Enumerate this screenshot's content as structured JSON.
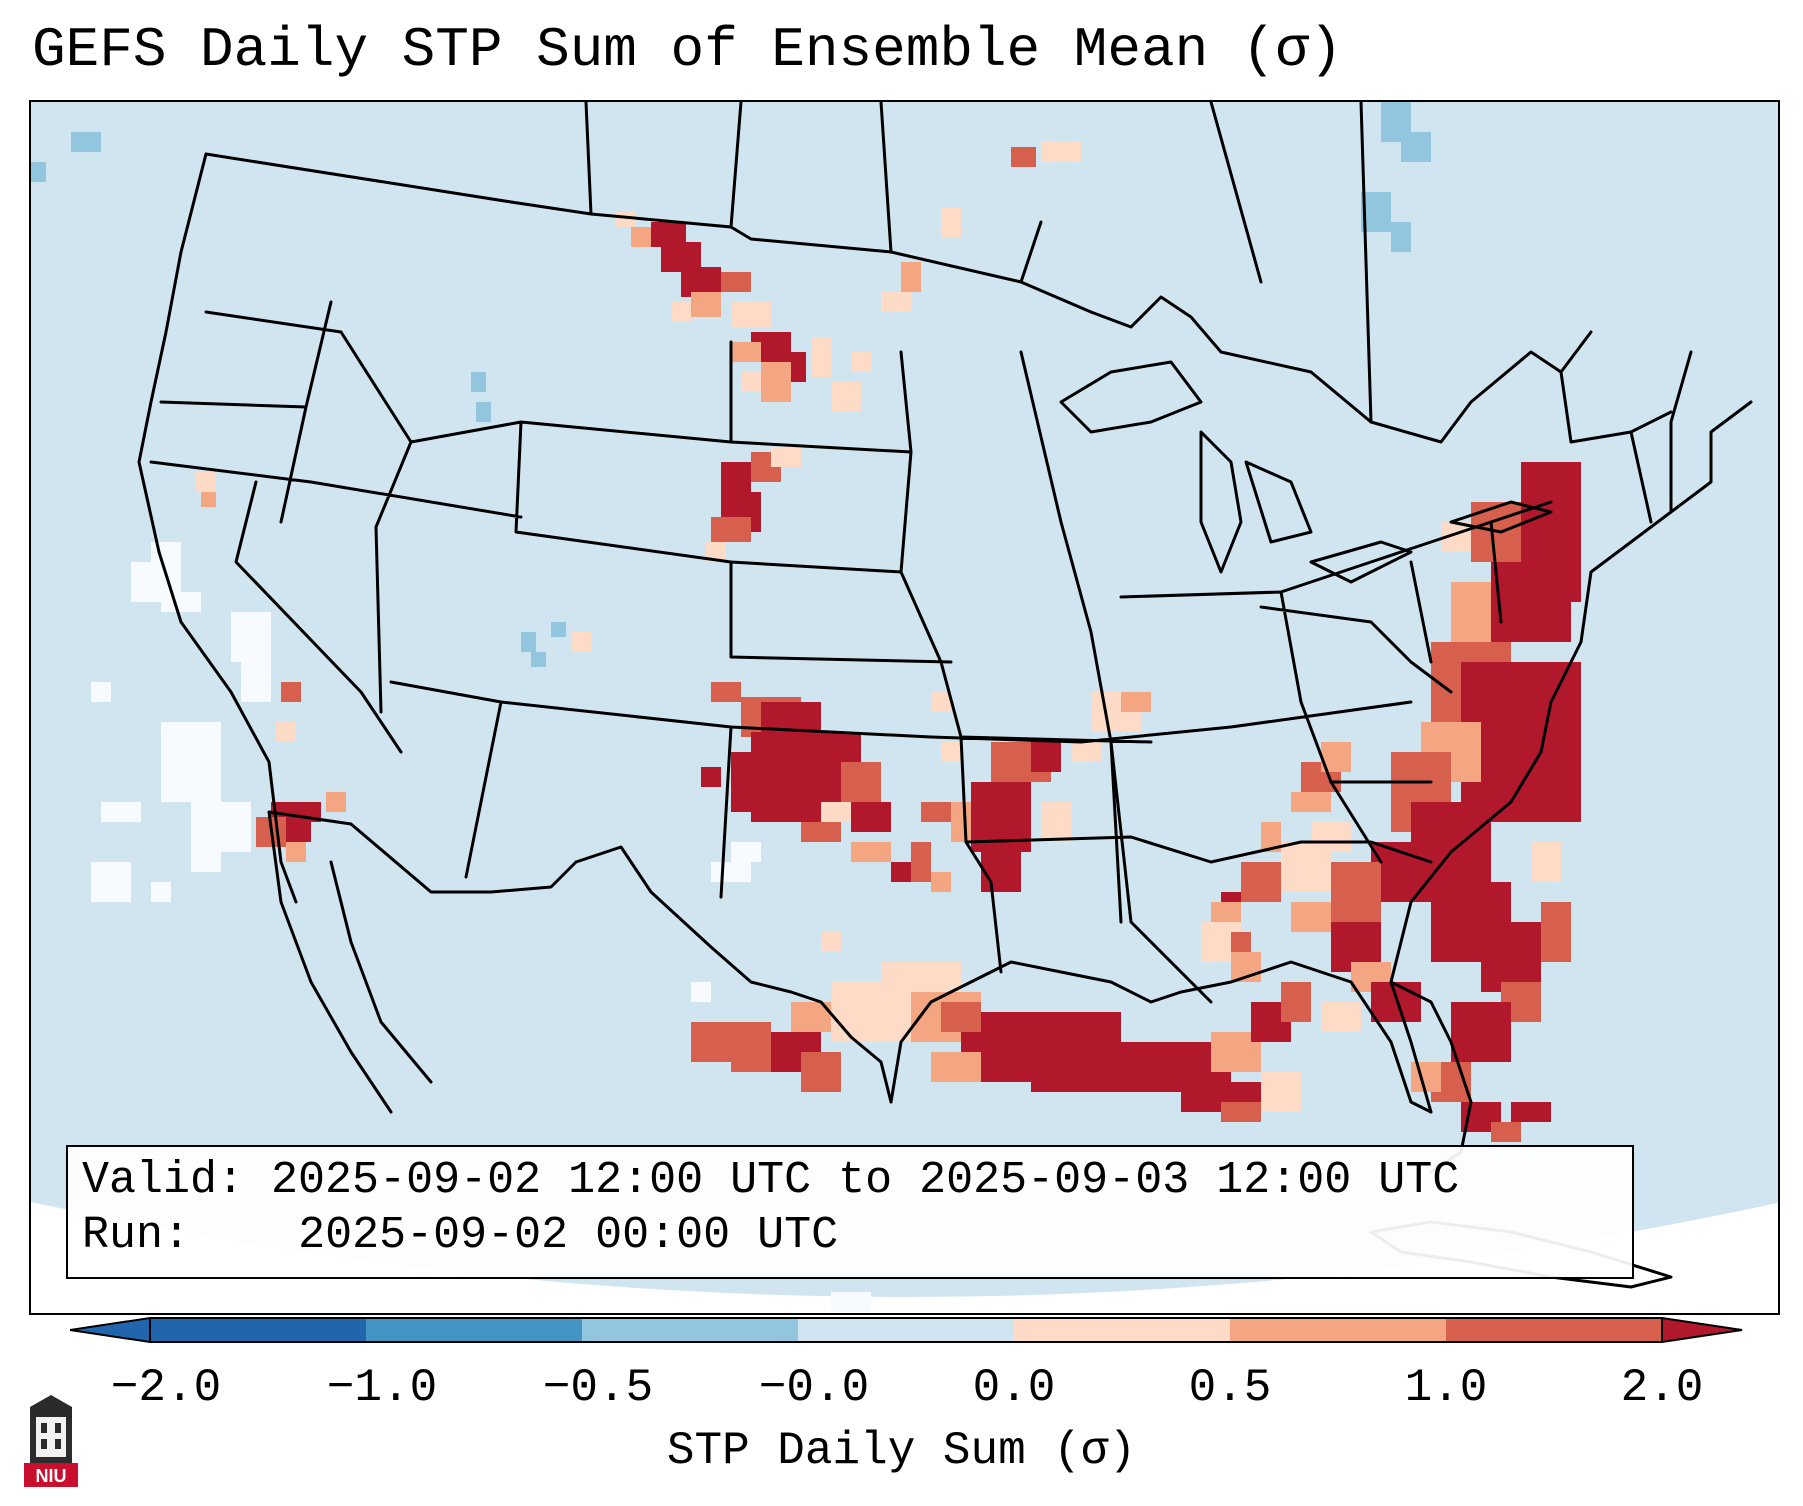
{
  "title": "GEFS Daily STP Sum of Ensemble Mean (σ)",
  "info": {
    "valid_label": "Valid:",
    "valid_value": "2025-09-02 12:00 UTC to 2025-09-03 12:00 UTC",
    "run_label": "Run:",
    "run_value": "2025-09-02 00:00 UTC"
  },
  "colorbar": {
    "label": "STP Daily Sum (σ)",
    "ticks": [
      "−2.0",
      "−1.0",
      "−0.5",
      "−0.0",
      "0.0",
      "0.5",
      "1.0",
      "2.0"
    ],
    "colors": [
      "#2166ac",
      "#4393c3",
      "#92c5de",
      "#d1e5f0",
      "#f7fbff",
      "#fddbc7",
      "#f4a582",
      "#d6604d",
      "#b2182b"
    ],
    "extend": "both"
  },
  "map": {
    "region": "Continental United States",
    "projection": "Lambert Conformal",
    "background_color": "#d1e5f0",
    "border_color": "#000000"
  },
  "logo": {
    "text": "NIU",
    "color": "#c8102e"
  }
}
